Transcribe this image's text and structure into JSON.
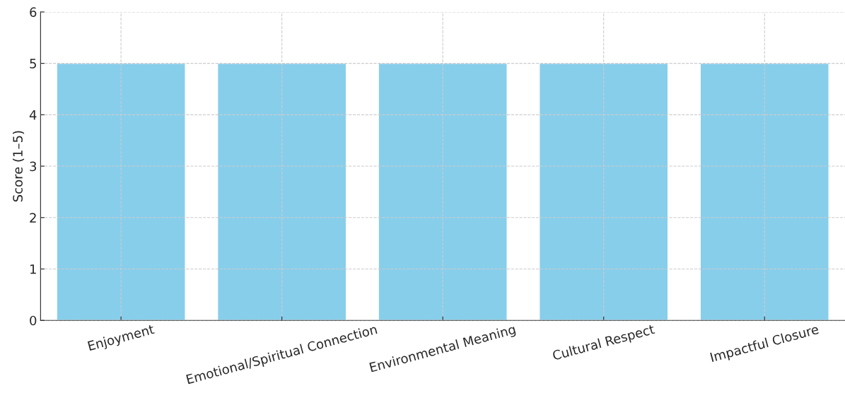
{
  "chart_data": {
    "type": "bar",
    "ylabel": "Score (1–5)",
    "categories": [
      "Enjoyment",
      "Emotional/Spiritual Connection",
      "Environmental Meaning",
      "Cultural Respect",
      "Impactful Closure"
    ],
    "values": [
      5,
      5,
      5,
      5,
      5
    ],
    "color": "#87ceeb",
    "ylim": [
      0,
      6
    ],
    "yticks": [
      0,
      1,
      2,
      3,
      4,
      5,
      6
    ],
    "grid": true
  }
}
